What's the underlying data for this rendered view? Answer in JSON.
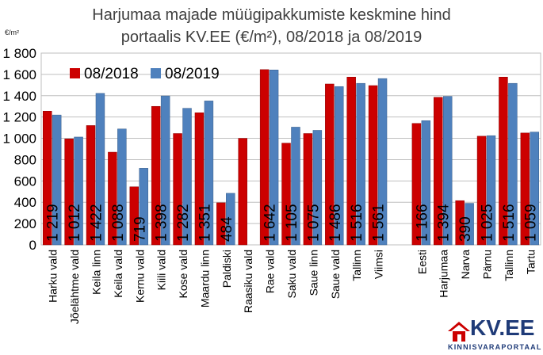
{
  "title_line1": "Harjumaa majade müügipakkumiste keskmine hind",
  "title_line2": "portaalis KV.EE (€/m²), 08/2018 ja 08/2019",
  "unit": "€/m²",
  "logo": {
    "text": "KV.EE",
    "subtext": "KINNISVARAPORTAAL",
    "icon": "house-icon"
  },
  "colors": {
    "series_2018": "#cc0000",
    "series_2019": "#4f81bd"
  },
  "chart_data": {
    "type": "bar",
    "title": "Harjumaa majade müügipakkumiste keskmine hind portaalis KV.EE (€/m²), 08/2018 ja 08/2019",
    "ylabel": "€/m²",
    "ylim": [
      0,
      1800
    ],
    "yticks": [
      0,
      200,
      400,
      600,
      800,
      1000,
      1200,
      1400,
      1600,
      1800
    ],
    "ytick_labels": [
      "0",
      "200",
      "400",
      "600",
      "800",
      "1 000",
      "1 200",
      "1 400",
      "1 600",
      "1 800"
    ],
    "grid": true,
    "legend": "top-left",
    "categories": [
      "Harku vald",
      "Jõelähtme vald",
      "Keila linn",
      "Keila vald",
      "Kernu vald",
      "Kiili vald",
      "Kose vald",
      "Maardu linn",
      "Paldiski",
      "Raasiku vald",
      "Rae vald",
      "Saku vald",
      "Saue linn",
      "Saue vald",
      "Tallinn",
      "Viimsi",
      "",
      "Eesti",
      "Harjumaa",
      "Narva",
      "Pärnu",
      "Tallinn",
      "Tartu"
    ],
    "series": [
      {
        "name": "08/2018",
        "values": [
          1255,
          995,
          1120,
          870,
          545,
          1300,
          1045,
          1240,
          395,
          1000,
          1645,
          955,
          1045,
          1510,
          1575,
          1495,
          null,
          1140,
          1385,
          415,
          1020,
          1575,
          1050
        ]
      },
      {
        "name": "08/2019",
        "values": [
          1219,
          1012,
          1422,
          1088,
          719,
          1398,
          1282,
          1351,
          484,
          null,
          1642,
          1105,
          1075,
          1486,
          1516,
          1561,
          null,
          1166,
          1394,
          390,
          1025,
          1516,
          1059
        ]
      }
    ],
    "data_labels": [
      "1 219",
      "1 012",
      "1 422",
      "1 088",
      "719",
      "1 398",
      "1 282",
      "1 351",
      "484",
      "",
      "1 642",
      "1 105",
      "1 075",
      "1 486",
      "1 516",
      "1 561",
      "",
      "1 166",
      "1 394",
      "390",
      "1 025",
      "1 516",
      "1 059"
    ]
  }
}
